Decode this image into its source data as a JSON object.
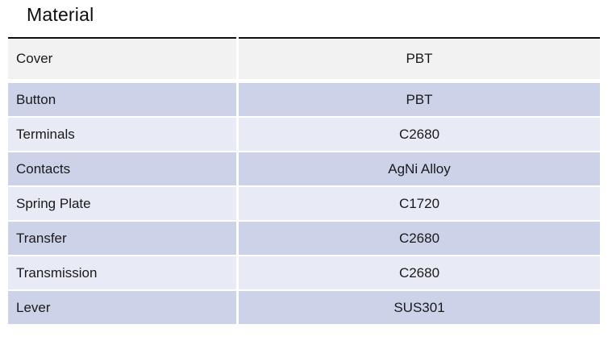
{
  "page": {
    "title": "Material"
  },
  "colors": {
    "header_row_bg": "#f2f2f2",
    "band_dark": "#ccd3e8",
    "band_light": "#e8eaf5",
    "top_border": "#0f0f0f",
    "text": "#1a1a1a"
  },
  "table": {
    "rows": [
      {
        "label": "Cover",
        "value": "PBT"
      },
      {
        "label": "Button",
        "value": "PBT"
      },
      {
        "label": "Terminals",
        "value": "C2680"
      },
      {
        "label": "Contacts",
        "value": "AgNi Alloy"
      },
      {
        "label": "Spring Plate",
        "value": "C1720"
      },
      {
        "label": "Transfer",
        "value": "C2680"
      },
      {
        "label": "Transmission",
        "value": "C2680"
      },
      {
        "label": "Lever",
        "value": "SUS301"
      }
    ]
  }
}
